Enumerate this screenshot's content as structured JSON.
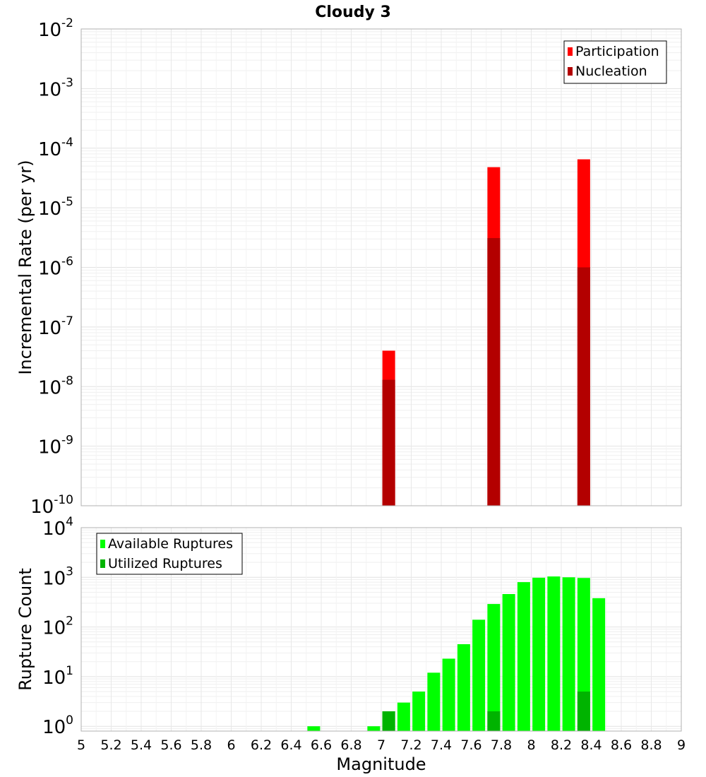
{
  "title": "Cloudy 3",
  "chart_data": [
    {
      "type": "bar",
      "title": "Cloudy 3",
      "xlabel": "",
      "ylabel": "Incremental Rate (per yr)",
      "yscale": "log",
      "xlim": [
        5,
        9
      ],
      "ylim": [
        1e-10,
        0.01
      ],
      "grid": true,
      "legend_position": "top-right",
      "y_ticks": [
        {
          "base": "10",
          "exp": "-10",
          "value": 1e-10
        },
        {
          "base": "10",
          "exp": "-9",
          "value": 1e-09
        },
        {
          "base": "10",
          "exp": "-8",
          "value": 1e-08
        },
        {
          "base": "10",
          "exp": "-7",
          "value": 1e-07
        },
        {
          "base": "10",
          "exp": "-6",
          "value": 1e-06
        },
        {
          "base": "10",
          "exp": "-5",
          "value": 1e-05
        },
        {
          "base": "10",
          "exp": "-4",
          "value": 0.0001
        },
        {
          "base": "10",
          "exp": "-3",
          "value": 0.001
        },
        {
          "base": "10",
          "exp": "-2",
          "value": 0.01
        }
      ],
      "series": [
        {
          "name": "Participation",
          "color": "#ff0000",
          "x": [
            7.05,
            7.75,
            8.35
          ],
          "values": [
            4e-08,
            4.8e-05,
            6.5e-05
          ]
        },
        {
          "name": "Nucleation",
          "color": "#b30000",
          "x": [
            7.05,
            7.75,
            8.35
          ],
          "values": [
            1.3e-08,
            3.1e-06,
            1e-06
          ]
        }
      ]
    },
    {
      "type": "bar",
      "title": "",
      "xlabel": "Magnitude",
      "ylabel": "Rupture Count",
      "yscale": "log",
      "xlim": [
        5,
        9
      ],
      "ylim": [
        0.8,
        10000
      ],
      "grid": true,
      "legend_position": "top-left",
      "x_ticks": [
        "5",
        "5.2",
        "5.4",
        "5.6",
        "5.8",
        "6",
        "6.2",
        "6.4",
        "6.6",
        "6.8",
        "7",
        "7.2",
        "7.4",
        "7.6",
        "7.8",
        "8",
        "8.2",
        "8.4",
        "8.6",
        "8.8",
        "9"
      ],
      "y_ticks": [
        {
          "base": "10",
          "exp": "0",
          "value": 1
        },
        {
          "base": "10",
          "exp": "1",
          "value": 10
        },
        {
          "base": "10",
          "exp": "2",
          "value": 100
        },
        {
          "base": "10",
          "exp": "3",
          "value": 1000
        },
        {
          "base": "10",
          "exp": "4",
          "value": 10000
        }
      ],
      "series": [
        {
          "name": "Available Ruptures",
          "color": "#00ff00",
          "x": [
            6.55,
            6.95,
            7.05,
            7.15,
            7.25,
            7.35,
            7.45,
            7.55,
            7.65,
            7.75,
            7.85,
            7.95,
            8.05,
            8.15,
            8.25,
            8.35,
            8.45
          ],
          "values": [
            1,
            1,
            2,
            3,
            5,
            12,
            23,
            45,
            140,
            290,
            460,
            800,
            980,
            1040,
            1000,
            970,
            380
          ]
        },
        {
          "name": "Utilized Ruptures",
          "color": "#00b300",
          "x": [
            7.05,
            7.75,
            8.35
          ],
          "values": [
            2,
            2,
            5
          ]
        }
      ]
    }
  ]
}
